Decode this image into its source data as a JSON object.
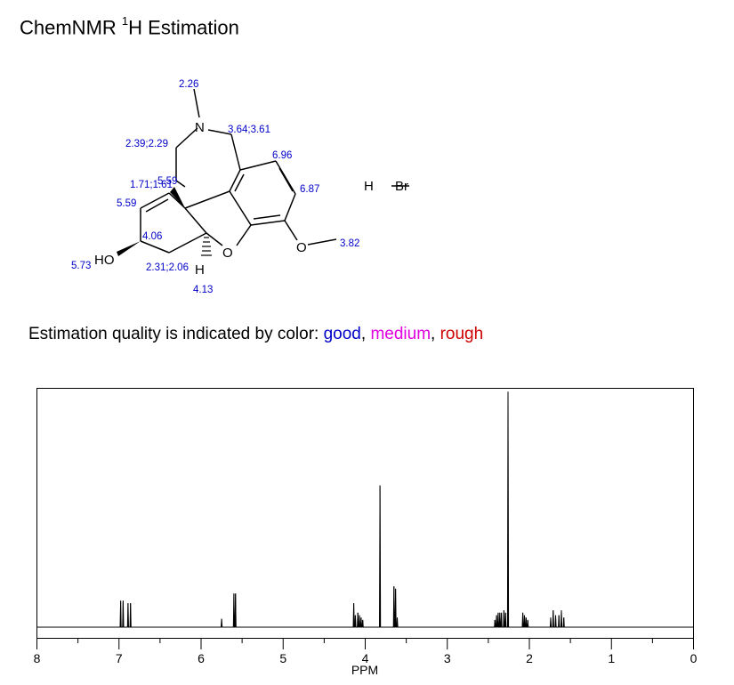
{
  "header": {
    "title_main": "ChemNMR ",
    "title_sup": "1",
    "title_rest": "H Estimation"
  },
  "legend": {
    "prefix": "Estimation quality is indicated by color: ",
    "good": "good",
    "medium": "medium",
    "rough": "rough",
    "sep1": ", ",
    "sep2": ", ",
    "colors": {
      "good": "#0000c8",
      "medium": "#e000e0",
      "rough": "#d00000"
    }
  },
  "molecule": {
    "atoms": {
      "N": "N",
      "O_ring": "O",
      "O_methoxy": "O",
      "HO": "HO",
      "H": "H",
      "HBr_H": "H",
      "HBr_Br": "Br"
    },
    "shifts": [
      "2.26",
      "3.64;3.61",
      "2.39;2.29",
      "6.96",
      "1.71;1.61",
      "5.59",
      "6.87",
      "5.59",
      "4.06",
      "3.82",
      "5.73",
      "2.31;2.06",
      "4.13"
    ]
  },
  "chart_data": {
    "type": "line",
    "title": "",
    "xlabel": "PPM",
    "ylabel": "",
    "xlim": [
      8,
      0
    ],
    "x_reversed": true,
    "ticks": [
      8,
      7,
      6,
      5,
      4,
      3,
      2,
      1,
      0
    ],
    "tick_labels": [
      "8",
      "7",
      "6",
      "5",
      "4",
      "3",
      "2",
      "1",
      "0"
    ],
    "grid": false,
    "peaks": [
      {
        "ppm": 6.98,
        "height": 0.11
      },
      {
        "ppm": 6.95,
        "height": 0.11
      },
      {
        "ppm": 6.89,
        "height": 0.1
      },
      {
        "ppm": 6.86,
        "height": 0.1
      },
      {
        "ppm": 5.75,
        "height": 0.035
      },
      {
        "ppm": 5.6,
        "height": 0.14
      },
      {
        "ppm": 5.58,
        "height": 0.14
      },
      {
        "ppm": 4.14,
        "height": 0.1
      },
      {
        "ppm": 4.12,
        "height": 0.05
      },
      {
        "ppm": 4.09,
        "height": 0.06
      },
      {
        "ppm": 4.07,
        "height": 0.05
      },
      {
        "ppm": 4.05,
        "height": 0.04
      },
      {
        "ppm": 4.03,
        "height": 0.03
      },
      {
        "ppm": 3.82,
        "height": 0.59
      },
      {
        "ppm": 3.65,
        "height": 0.17
      },
      {
        "ppm": 3.63,
        "height": 0.16
      },
      {
        "ppm": 3.61,
        "height": 0.04
      },
      {
        "ppm": 2.42,
        "height": 0.03
      },
      {
        "ppm": 2.4,
        "height": 0.05
      },
      {
        "ppm": 2.38,
        "height": 0.06
      },
      {
        "ppm": 2.36,
        "height": 0.06
      },
      {
        "ppm": 2.34,
        "height": 0.06
      },
      {
        "ppm": 2.31,
        "height": 0.07
      },
      {
        "ppm": 2.29,
        "height": 0.06
      },
      {
        "ppm": 2.26,
        "height": 0.98
      },
      {
        "ppm": 2.08,
        "height": 0.06
      },
      {
        "ppm": 2.06,
        "height": 0.05
      },
      {
        "ppm": 2.04,
        "height": 0.04
      },
      {
        "ppm": 2.02,
        "height": 0.03
      },
      {
        "ppm": 1.74,
        "height": 0.04
      },
      {
        "ppm": 1.71,
        "height": 0.07
      },
      {
        "ppm": 1.68,
        "height": 0.05
      },
      {
        "ppm": 1.64,
        "height": 0.05
      },
      {
        "ppm": 1.61,
        "height": 0.07
      },
      {
        "ppm": 1.58,
        "height": 0.04
      }
    ]
  }
}
